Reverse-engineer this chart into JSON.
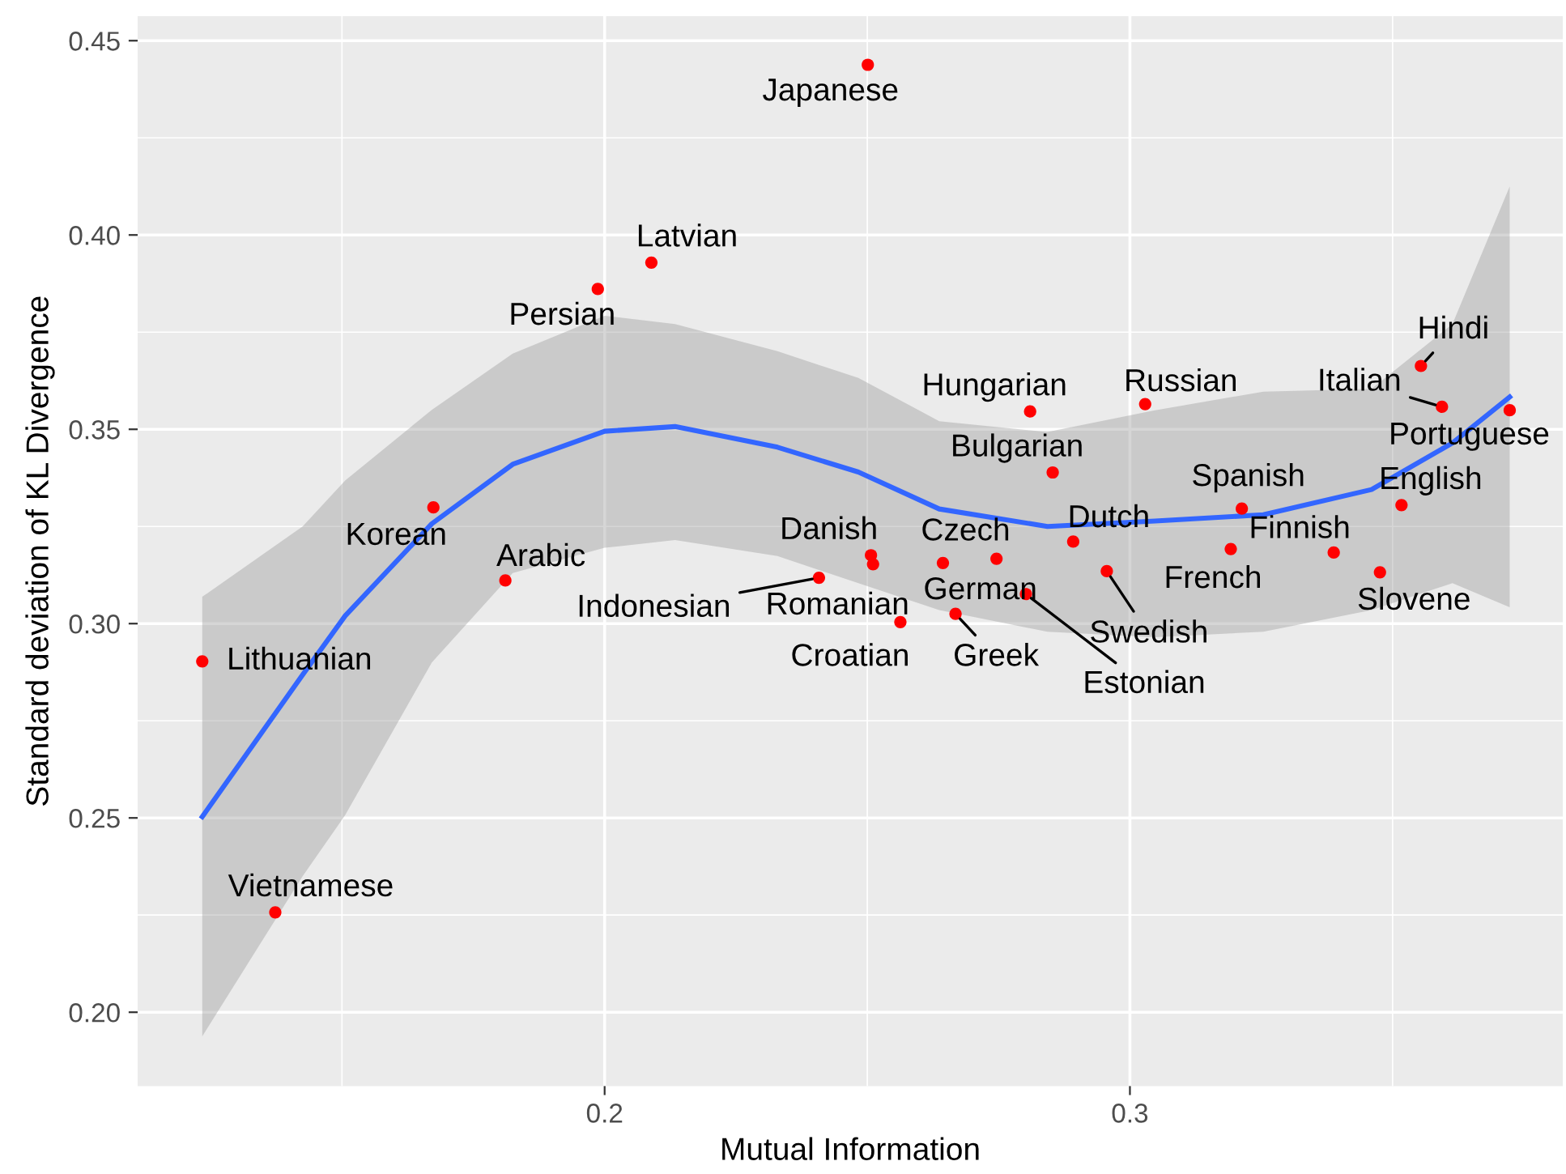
{
  "chart_data": {
    "type": "scatter",
    "xlabel": "Mutual Information",
    "ylabel": "Standard deviation of KL Divergence",
    "xlim": [
      0.1111,
      0.3824
    ],
    "ylim": [
      0.181,
      0.4563
    ],
    "xticks": [
      {
        "value": 0.15,
        "label": null
      },
      0.2,
      {
        "value": 0.25,
        "label": null
      },
      0.3,
      {
        "value": 0.35,
        "label": null
      }
    ],
    "yticks": [
      {
        "value": 0.2,
        "label": "0.20"
      },
      {
        "value": 0.225,
        "label": null
      },
      0.25,
      {
        "value": 0.275,
        "label": null
      },
      {
        "value": 0.3,
        "label": "0.30"
      },
      {
        "value": 0.325,
        "label": null
      },
      0.35,
      {
        "value": 0.375,
        "label": null
      },
      {
        "value": 0.4,
        "label": "0.40"
      },
      {
        "value": 0.425,
        "label": null
      },
      0.45
    ],
    "grid": true,
    "legend": false,
    "marker": "circle",
    "series": [
      {
        "type": "line",
        "color": "#3366ff",
        "marker": "none",
        "line_style": "solid",
        "x": [
          0.1234,
          0.1425,
          0.1506,
          0.1671,
          0.1825,
          0.2,
          0.2134,
          0.2329,
          0.2483,
          0.2637,
          0.2843,
          0.3048,
          0.3254,
          0.346,
          0.3614,
          0.3723
        ],
        "values": [
          0.2503,
          0.2868,
          0.302,
          0.3257,
          0.341,
          0.3495,
          0.3507,
          0.3454,
          0.339,
          0.3295,
          0.325,
          0.3264,
          0.328,
          0.3345,
          0.3465,
          0.3583
        ],
        "lower": [
          0.1938,
          0.235,
          0.2507,
          0.29,
          0.313,
          0.3195,
          0.3215,
          0.3174,
          0.3104,
          0.3035,
          0.2979,
          0.2965,
          0.2979,
          0.3035,
          0.3104,
          0.3042
        ],
        "upper": [
          0.3069,
          0.325,
          0.3368,
          0.355,
          0.3695,
          0.3792,
          0.3771,
          0.3701,
          0.3632,
          0.3521,
          0.3493,
          0.3549,
          0.3597,
          0.3604,
          0.3771,
          0.4125
        ]
      },
      {
        "color": "#ff0000",
        "x": [
          0.2501,
          0.2089,
          0.1987,
          0.1674,
          0.1811,
          0.1234,
          0.1373,
          0.2408,
          0.2507,
          0.2511,
          0.2563,
          0.2644,
          0.2746,
          0.2668,
          0.2802,
          0.2892,
          0.2853,
          0.281,
          0.3029,
          0.2956,
          0.3192,
          0.3213,
          0.3388,
          0.3476,
          0.3517,
          0.3554,
          0.3594,
          0.3723
        ],
        "values": [
          0.4438,
          0.3929,
          0.3861,
          0.3299,
          0.3111,
          0.2903,
          0.2257,
          0.3118,
          0.3176,
          0.3153,
          0.3004,
          0.3156,
          0.3167,
          0.3025,
          0.3076,
          0.3211,
          0.3389,
          0.3546,
          0.3565,
          0.3135,
          0.3192,
          0.3296,
          0.3183,
          0.3132,
          0.3305,
          0.3663,
          0.3558,
          0.3549
        ]
      }
    ],
    "annotations": [
      {
        "text": "Japanese",
        "x": 0.2501,
        "y": 0.4438
      },
      {
        "text": "Latvian",
        "x": 0.2089,
        "y": 0.3929
      },
      {
        "text": "Persian",
        "x": 0.1987,
        "y": 0.3861
      },
      {
        "text": "Korean",
        "x": 0.1674,
        "y": 0.3299
      },
      {
        "text": "Arabic",
        "x": 0.1811,
        "y": 0.3111
      },
      {
        "text": "Lithuanian",
        "x": 0.1234,
        "y": 0.2903
      },
      {
        "text": "Vietnamese",
        "x": 0.1373,
        "y": 0.2257
      },
      {
        "text": "Indonesian",
        "x": 0.2408,
        "y": 0.3118
      },
      {
        "text": "Danish",
        "x": 0.2507,
        "y": 0.3176
      },
      {
        "text": "Romanian",
        "x": 0.2511,
        "y": 0.3153
      },
      {
        "text": "Croatian",
        "x": 0.2563,
        "y": 0.3004
      },
      {
        "text": "Czech",
        "x": 0.2644,
        "y": 0.3156
      },
      {
        "text": "German",
        "x": 0.2746,
        "y": 0.3167
      },
      {
        "text": "Greek",
        "x": 0.2668,
        "y": 0.3025
      },
      {
        "text": "Estonian",
        "x": 0.2802,
        "y": 0.3076
      },
      {
        "text": "Dutch",
        "x": 0.2892,
        "y": 0.3211
      },
      {
        "text": "Bulgarian",
        "x": 0.2853,
        "y": 0.3389
      },
      {
        "text": "Hungarian",
        "x": 0.281,
        "y": 0.3546
      },
      {
        "text": "Russian",
        "x": 0.3029,
        "y": 0.3565
      },
      {
        "text": "Swedish",
        "x": 0.2956,
        "y": 0.3135
      },
      {
        "text": "French",
        "x": 0.3192,
        "y": 0.3192
      },
      {
        "text": "Spanish",
        "x": 0.3213,
        "y": 0.3296
      },
      {
        "text": "Finnish",
        "x": 0.3388,
        "y": 0.3183
      },
      {
        "text": "Slovene",
        "x": 0.3476,
        "y": 0.3132
      },
      {
        "text": "English",
        "x": 0.3517,
        "y": 0.3305
      },
      {
        "text": "Hindi",
        "x": 0.3554,
        "y": 0.3663
      },
      {
        "text": "Italian",
        "x": 0.3594,
        "y": 0.3558
      },
      {
        "text": "Portuguese",
        "x": 0.3723,
        "y": 0.3549
      }
    ]
  }
}
